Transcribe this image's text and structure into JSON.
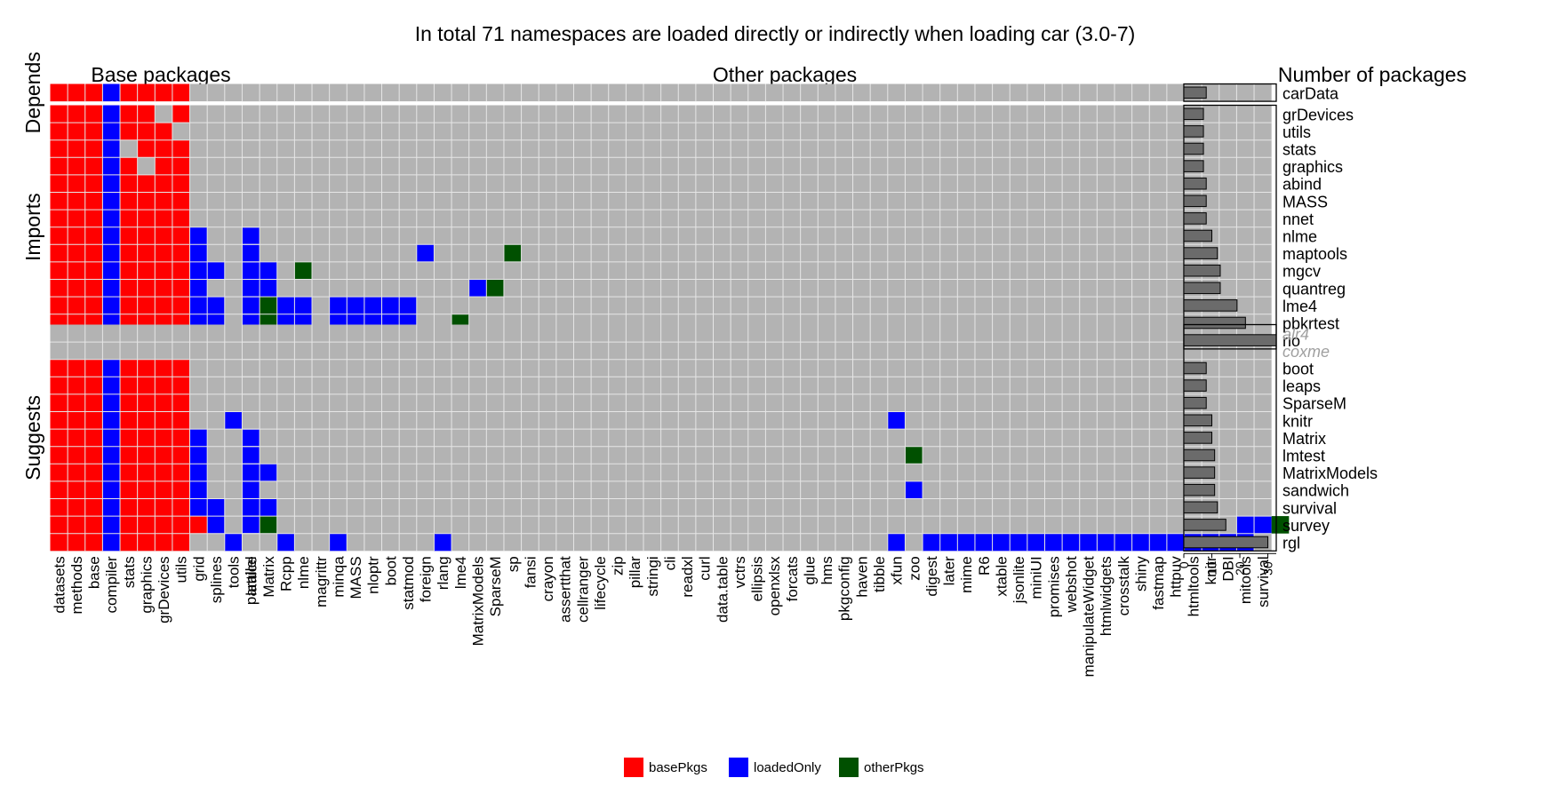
{
  "chart_data": {
    "type": "heatmap",
    "title": "In total 71 namespaces are loaded directly or indirectly when loading car (3.0-7)",
    "column_group_labels": [
      "Base packages",
      "Other packages"
    ],
    "bar_panel_title": "Number of packages",
    "row_group_labels": [
      "Depends",
      "Imports",
      "Suggests"
    ],
    "legend": [
      {
        "key": "b",
        "label": "basePkgs",
        "color": "#ff0000"
      },
      {
        "key": "l",
        "label": "loadedOnly",
        "color": "#0000ff"
      },
      {
        "key": "o",
        "label": "otherPkgs",
        "color": "#005000"
      }
    ],
    "empty_color": "#b3b3b3",
    "bar_fill": "#6b6b6b",
    "unavailable_label_color": "#a0a0a0",
    "bar_axis_ticks": [
      0,
      10,
      20,
      30
    ],
    "bar_axis_max": 33,
    "base_columns": [
      "datasets",
      "methods",
      "base",
      "compiler",
      "stats",
      "graphics",
      "grDevices",
      "utils",
      "grid",
      "splines",
      "tools",
      "parallel"
    ],
    "other_columns": [
      "lattice",
      "Matrix",
      "Rcpp",
      "nlme",
      "magrittr",
      "minqa",
      "MASS",
      "nloptr",
      "boot",
      "statmod",
      "foreign",
      "rlang",
      "lme4",
      "MatrixModels",
      "SparseM",
      "sp",
      "fansi",
      "crayon",
      "assertthat",
      "cellranger",
      "lifecycle",
      "zip",
      "pillar",
      "stringi",
      "cli",
      "readxl",
      "curl",
      "data.table",
      "vctrs",
      "ellipsis",
      "openxlsx",
      "forcats",
      "glue",
      "hms",
      "pkgconfig",
      "haven",
      "tibble",
      "xfun",
      "zoo",
      "digest",
      "later",
      "mime",
      "R6",
      "xtable",
      "jsonlite",
      "miniUI",
      "promises",
      "webshot",
      "manipulateWidget",
      "htmlwidgets",
      "crosstalk",
      "shiny",
      "fastmap",
      "httpuv",
      "htmltools",
      "knitr",
      "DBI",
      "mitools",
      "survival"
    ],
    "groups": [
      {
        "name": "Depends",
        "rows": [
          {
            "label": "carData",
            "count": 8,
            "available": true,
            "base": "bbblbbbb....",
            "other": ""
          }
        ]
      },
      {
        "name": "Imports",
        "rows": [
          {
            "label": "grDevices",
            "count": 7,
            "available": true,
            "base": "bbblbb.b....",
            "other": ""
          },
          {
            "label": "utils",
            "count": 7,
            "available": true,
            "base": "bbblbbb.....",
            "other": ""
          },
          {
            "label": "stats",
            "count": 7,
            "available": true,
            "base": "bbbl.bbb....",
            "other": ""
          },
          {
            "label": "graphics",
            "count": 7,
            "available": true,
            "base": "bbblb.bb....",
            "other": ""
          },
          {
            "label": "abind",
            "count": 8,
            "available": true,
            "base": "bbblbbbb....",
            "other": ""
          },
          {
            "label": "MASS",
            "count": 8,
            "available": true,
            "base": "bbblbbbb....",
            "other": ""
          },
          {
            "label": "nnet",
            "count": 8,
            "available": true,
            "base": "bbblbbbb....",
            "other": ""
          },
          {
            "label": "nlme",
            "count": 10,
            "available": true,
            "base": "bbblbbbbl...",
            "other": "l"
          },
          {
            "label": "maptools",
            "count": 12,
            "available": true,
            "base": "bbblbbbbl...",
            "other": "l.........l....o"
          },
          {
            "label": "mgcv",
            "count": 13,
            "available": true,
            "base": "bbblbbbbll..",
            "other": "ll.o"
          },
          {
            "label": "quantreg",
            "count": 13,
            "available": true,
            "base": "bbblbbbbl...",
            "other": "ll...........lo"
          },
          {
            "label": "lme4",
            "count": 19,
            "available": true,
            "base": "bbblbbbbll..",
            "other": "loll.lllll"
          },
          {
            "label": "pbkrtest",
            "count": 22,
            "available": true,
            "base": "bbblbbbbll.l",
            "other": "loll.lllll..o"
          },
          {
            "label": "rio",
            "count": 33,
            "available": true,
            "base": "bbblbbbb..l.",
            "other": "..l..l....ll....lllllllllllllllllllll"
          }
        ]
      },
      {
        "name": "Suggests",
        "rows": [
          {
            "label": "alr4",
            "count": 0,
            "available": false,
            "base": "",
            "other": ""
          },
          {
            "label": "coxme",
            "count": 0,
            "available": false,
            "base": "",
            "other": ""
          },
          {
            "label": "boot",
            "count": 8,
            "available": true,
            "base": "bbblbbbb....",
            "other": ""
          },
          {
            "label": "leaps",
            "count": 8,
            "available": true,
            "base": "bbblbbbb....",
            "other": ""
          },
          {
            "label": "SparseM",
            "count": 8,
            "available": true,
            "base": "bbblbbbb....",
            "other": ""
          },
          {
            "label": "knitr",
            "count": 10,
            "available": true,
            "base": "bbblbbbb..l.",
            "other": ".....................................l"
          },
          {
            "label": "Matrix",
            "count": 10,
            "available": true,
            "base": "bbblbbbbl...",
            "other": "l"
          },
          {
            "label": "lmtest",
            "count": 11,
            "available": true,
            "base": "bbblbbbbl...",
            "other": "l.....................................o"
          },
          {
            "label": "MatrixModels",
            "count": 11,
            "available": true,
            "base": "bbblbbbbl...",
            "other": "ll"
          },
          {
            "label": "sandwich",
            "count": 11,
            "available": true,
            "base": "bbblbbbbl...",
            "other": "l.....................................l"
          },
          {
            "label": "survival",
            "count": 12,
            "available": true,
            "base": "bbblbbbbll..",
            "other": "ll"
          },
          {
            "label": "survey",
            "count": 15,
            "available": true,
            "base": "bbblbbbbbl..",
            "other": "lo.......................................................llo"
          },
          {
            "label": "rgl",
            "count": 30,
            "available": true,
            "base": "bbblbbbb..l.",
            "other": "..l..l.....l.........................l.lllllllllllllllllll"
          }
        ]
      }
    ]
  }
}
